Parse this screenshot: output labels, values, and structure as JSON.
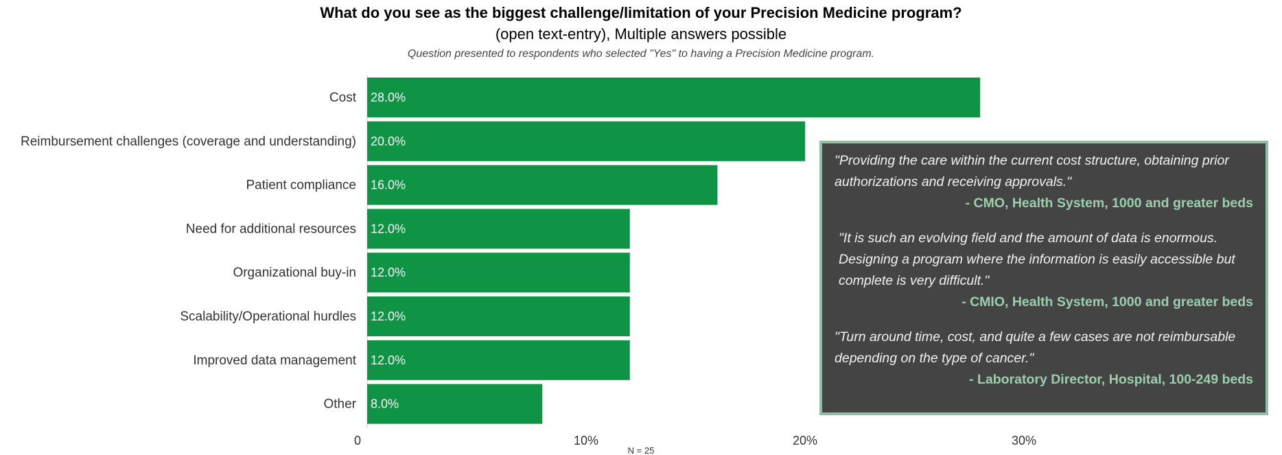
{
  "chart_data": {
    "type": "bar",
    "orientation": "horizontal",
    "title": "What do you see as the biggest challenge/limitation of your Precision Medicine program?",
    "subtitle": "(open text-entry), Multiple answers possible",
    "note": "Question presented to respondents who selected \"Yes\" to having a Precision Medicine program.",
    "categories": [
      "Cost",
      "Reimbursement challenges (coverage and understanding)",
      "Patient compliance",
      "Need for additional resources",
      "Organizational buy-in",
      "Scalability/Operational hurdles",
      "Improved data management",
      "Other"
    ],
    "values": [
      28.0,
      20.0,
      16.0,
      12.0,
      12.0,
      12.0,
      12.0,
      8.0
    ],
    "value_labels": [
      "28.0%",
      "20.0%",
      "16.0%",
      "12.0%",
      "12.0%",
      "12.0%",
      "12.0%",
      "8.0%"
    ],
    "xlim": [
      0,
      40
    ],
    "xticks": [
      0,
      10,
      20,
      30
    ],
    "xtick_labels": [
      "0",
      "10%",
      "20%",
      "30%"
    ],
    "sample_note": "N = 25",
    "bar_color": "#0e9444",
    "grid": false
  },
  "quotes": [
    {
      "text": "\"Providing the care within the current cost structure, obtaining prior authorizations and receiving approvals.\"",
      "attribution": "- CMO, Health System, 1000 and greater beds"
    },
    {
      "text": "\"It is such an evolving field and the amount of data is enormous. Designing a program where the information is easily accessible but complete is very difficult.\"",
      "attribution": "- CMIO, Health System, 1000 and greater beds"
    },
    {
      "text": "\"Turn around time, cost, and quite a few cases are not reimbursable depending on the type of cancer.\"",
      "attribution": "- Laboratory Director, Hospital, 100-249 beds"
    }
  ],
  "colors": {
    "panel_background": "#444444",
    "panel_border": "#8fbfa6",
    "attribution_text": "#9ccfae"
  }
}
